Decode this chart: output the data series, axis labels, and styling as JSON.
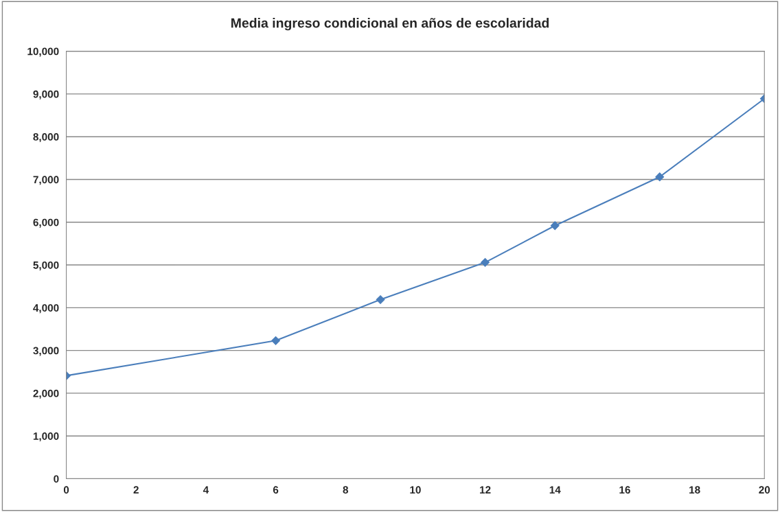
{
  "chart_data": {
    "type": "line",
    "title": "Media ingreso condicional en años de escolaridad",
    "x": [
      0,
      6,
      9,
      12,
      14,
      17,
      20
    ],
    "series": [
      {
        "color": "#4a7ebb",
        "values": [
          2410,
          3230,
          4190,
          5060,
          5920,
          7060,
          8890
        ]
      }
    ],
    "xlim": [
      0,
      20
    ],
    "xticks": [
      0,
      2,
      4,
      6,
      8,
      10,
      12,
      14,
      16,
      18,
      20
    ],
    "ylim": [
      0,
      10000
    ],
    "yticks": [
      {
        "value": 0,
        "label": "0"
      },
      {
        "value": 1000,
        "label": "1,000"
      },
      {
        "value": 2000,
        "label": "2,000"
      },
      {
        "value": 3000,
        "label": "3,000"
      },
      {
        "value": 4000,
        "label": "4,000"
      },
      {
        "value": 5000,
        "label": "5,000"
      },
      {
        "value": 6000,
        "label": "6,000"
      },
      {
        "value": 7000,
        "label": "7,000"
      },
      {
        "value": 8000,
        "label": "8,000"
      },
      {
        "value": 9000,
        "label": "9,000"
      },
      {
        "value": 10000,
        "label": "10,000"
      }
    ],
    "grid": "y",
    "marker": "diamond",
    "line_style": "solid"
  }
}
